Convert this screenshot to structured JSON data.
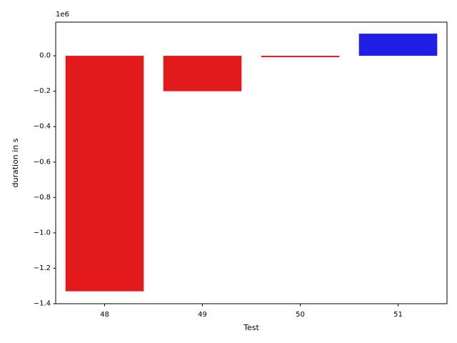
{
  "chart_data": {
    "type": "bar",
    "title": "",
    "xlabel": "Test",
    "ylabel": "duration in s",
    "offset_text": "1e6",
    "categories": [
      "48",
      "49",
      "50",
      "51"
    ],
    "values": [
      -1330000,
      -200000,
      -8000,
      125000
    ],
    "bar_colors": [
      "#e31a1c",
      "#e31a1c",
      "#e31a1c",
      "#1f1fe8"
    ],
    "ylim": [
      -1400000,
      190000
    ],
    "yticks": [
      -1400000,
      -1200000,
      -1000000,
      -800000,
      -600000,
      -400000,
      -200000,
      0
    ],
    "ytick_labels": [
      "−1.4",
      "−1.2",
      "−1.0",
      "−0.8",
      "−0.6",
      "−0.4",
      "−0.2",
      "0.0"
    ],
    "grid": false,
    "legend": "none"
  }
}
